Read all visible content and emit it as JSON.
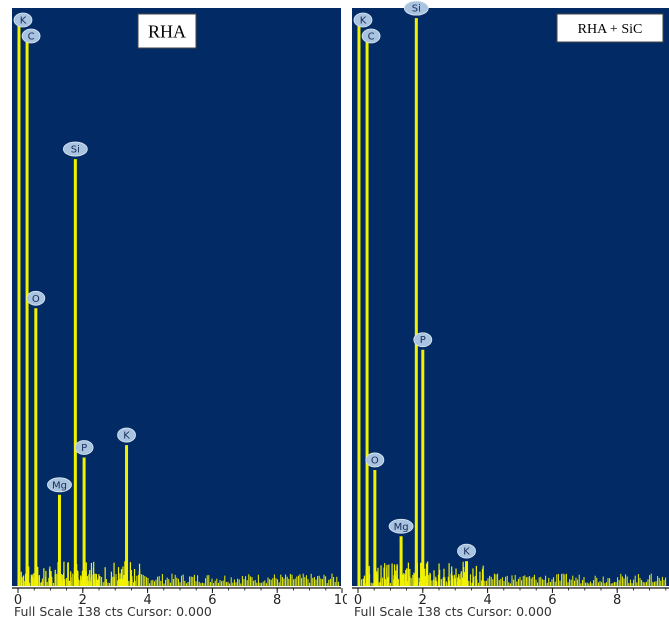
{
  "colors": {
    "plot_background": "#022b66",
    "spectrum": "#f2f200",
    "badge_fill": "#a8c4e0",
    "badge_text": "#1b2a55"
  },
  "chart_data": [
    {
      "type": "bar",
      "title": "RHA",
      "xlabel": "",
      "ylabel": "",
      "xlim": [
        0,
        10
      ],
      "ylim": [
        0,
        138
      ],
      "x_ticks": [
        "0",
        "2",
        "4",
        "6",
        "8",
        "10"
      ],
      "footer": "Full Scale 138 cts Cursor: 0.000",
      "peaks": [
        {
          "label": "K",
          "x": 0.03,
          "y": 138
        },
        {
          "label": "C",
          "x": 0.28,
          "y": 134
        },
        {
          "label": "O",
          "x": 0.55,
          "y": 67
        },
        {
          "label": "Mg",
          "x": 1.28,
          "y": 22
        },
        {
          "label": "Si",
          "x": 1.77,
          "y": 103
        },
        {
          "label": "P",
          "x": 2.04,
          "y": 31
        },
        {
          "label": "K",
          "x": 3.35,
          "y": 34
        }
      ]
    },
    {
      "type": "bar",
      "title": "RHA + SiC",
      "xlabel": "",
      "ylabel": "",
      "xlim": [
        0,
        10
      ],
      "ylim": [
        0,
        138
      ],
      "x_ticks": [
        "0",
        "2",
        "4",
        "6",
        "8"
      ],
      "footer": "Full Scale 138 cts Cursor: 0.000",
      "peaks": [
        {
          "label": "K",
          "x": 0.03,
          "y": 138
        },
        {
          "label": "C",
          "x": 0.28,
          "y": 134
        },
        {
          "label": "O",
          "x": 0.52,
          "y": 28
        },
        {
          "label": "Mg",
          "x": 1.33,
          "y": 12
        },
        {
          "label": "Si",
          "x": 1.8,
          "y": 137
        },
        {
          "label": "P",
          "x": 2.0,
          "y": 57
        },
        {
          "label": "K",
          "x": 3.35,
          "y": 6
        }
      ]
    }
  ]
}
